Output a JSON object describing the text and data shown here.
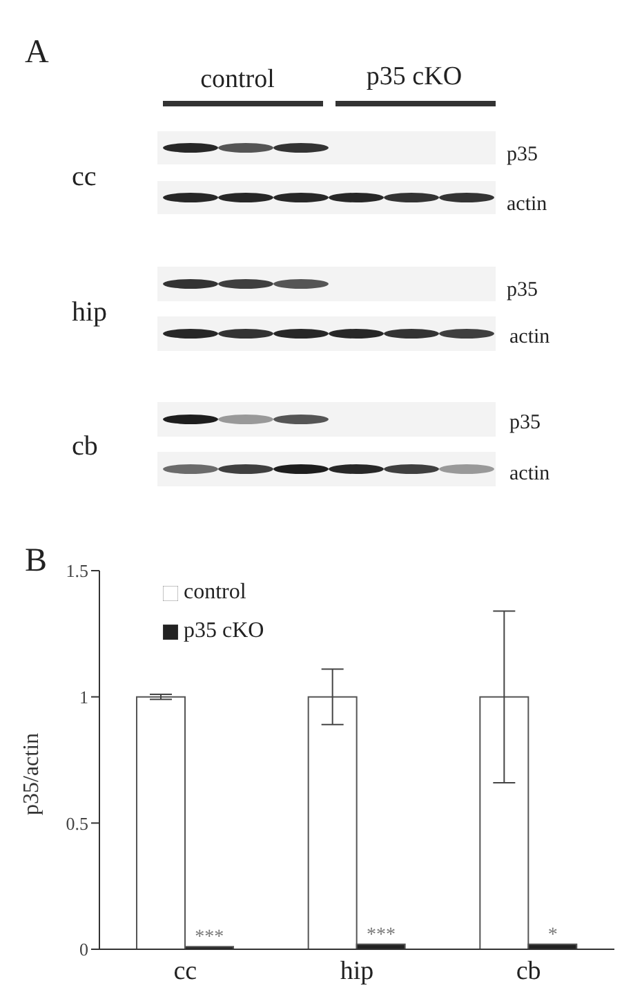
{
  "chart_data": [
    {
      "type": "other",
      "annotations": [
        "A",
        "control",
        "p35 cKO",
        "cc",
        "p35",
        "actin",
        "hip",
        "p35",
        "actin",
        "cb",
        "p35",
        "actin"
      ]
    },
    {
      "type": "bar",
      "title": "B",
      "ylabel": "p35/actin",
      "categories": [
        "cc",
        "hip",
        "cb"
      ],
      "series": [
        {
          "name": "control",
          "color": "#ffffff",
          "values": [
            1,
            1,
            1
          ],
          "errors": [
            0.01,
            0.11,
            0.34
          ]
        },
        {
          "name": "p35 cKO",
          "color": "#222222",
          "values": [
            0.01,
            0.02,
            0.02
          ]
        }
      ],
      "ylim": [
        0,
        1.5
      ],
      "yticks": [
        0,
        0.5,
        1,
        1.5
      ],
      "grid": false,
      "legend": "top left",
      "annotations": [
        {
          "text": "***",
          "x": "cc",
          "y": 0.01
        },
        {
          "text": "***",
          "x": "hip",
          "y": 0.02
        },
        {
          "text": "*",
          "x": "cb",
          "y": 0.02
        }
      ]
    }
  ]
}
